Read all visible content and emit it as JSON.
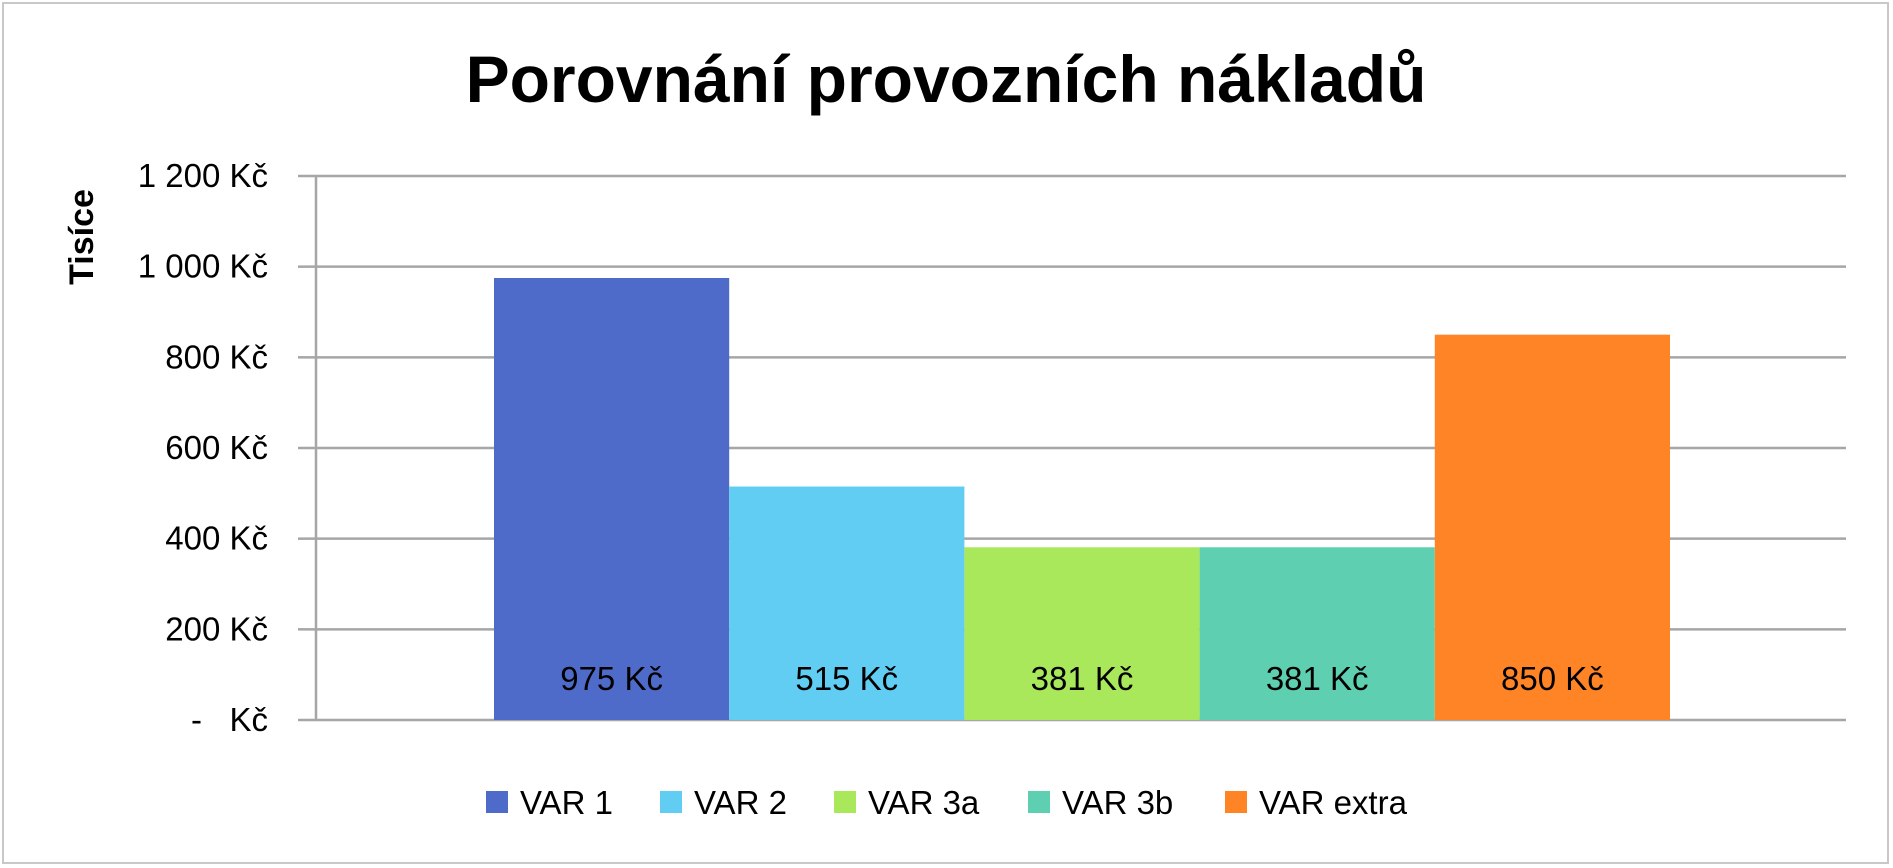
{
  "chart_data": {
    "type": "bar",
    "title": "Porovnání provozních nákladů",
    "ylabel": "Tisíce",
    "xlabel": "",
    "ylim": [
      0,
      1200
    ],
    "yticks": [
      0,
      200,
      400,
      600,
      800,
      1000,
      1200
    ],
    "ytick_labels": [
      "-   Kč",
      "200 Kč",
      "400 Kč",
      "600 Kč",
      "800 Kč",
      "1 000 Kč",
      "1 200 Kč"
    ],
    "grid": true,
    "legend_position": "bottom",
    "series": [
      {
        "name": "VAR 1",
        "value": 975,
        "label": "975 Kč",
        "color": "#4f6bca"
      },
      {
        "name": "VAR 2",
        "value": 515,
        "label": "515 Kč",
        "color": "#61cdf2"
      },
      {
        "name": "VAR 3a",
        "value": 381,
        "label": "381 Kč",
        "color": "#a8e85a"
      },
      {
        "name": "VAR 3b",
        "value": 381,
        "label": "381 Kč",
        "color": "#5ecfb1"
      },
      {
        "name": "VAR extra",
        "value": 850,
        "label": "850 Kč",
        "color": "#ff8426"
      }
    ]
  }
}
